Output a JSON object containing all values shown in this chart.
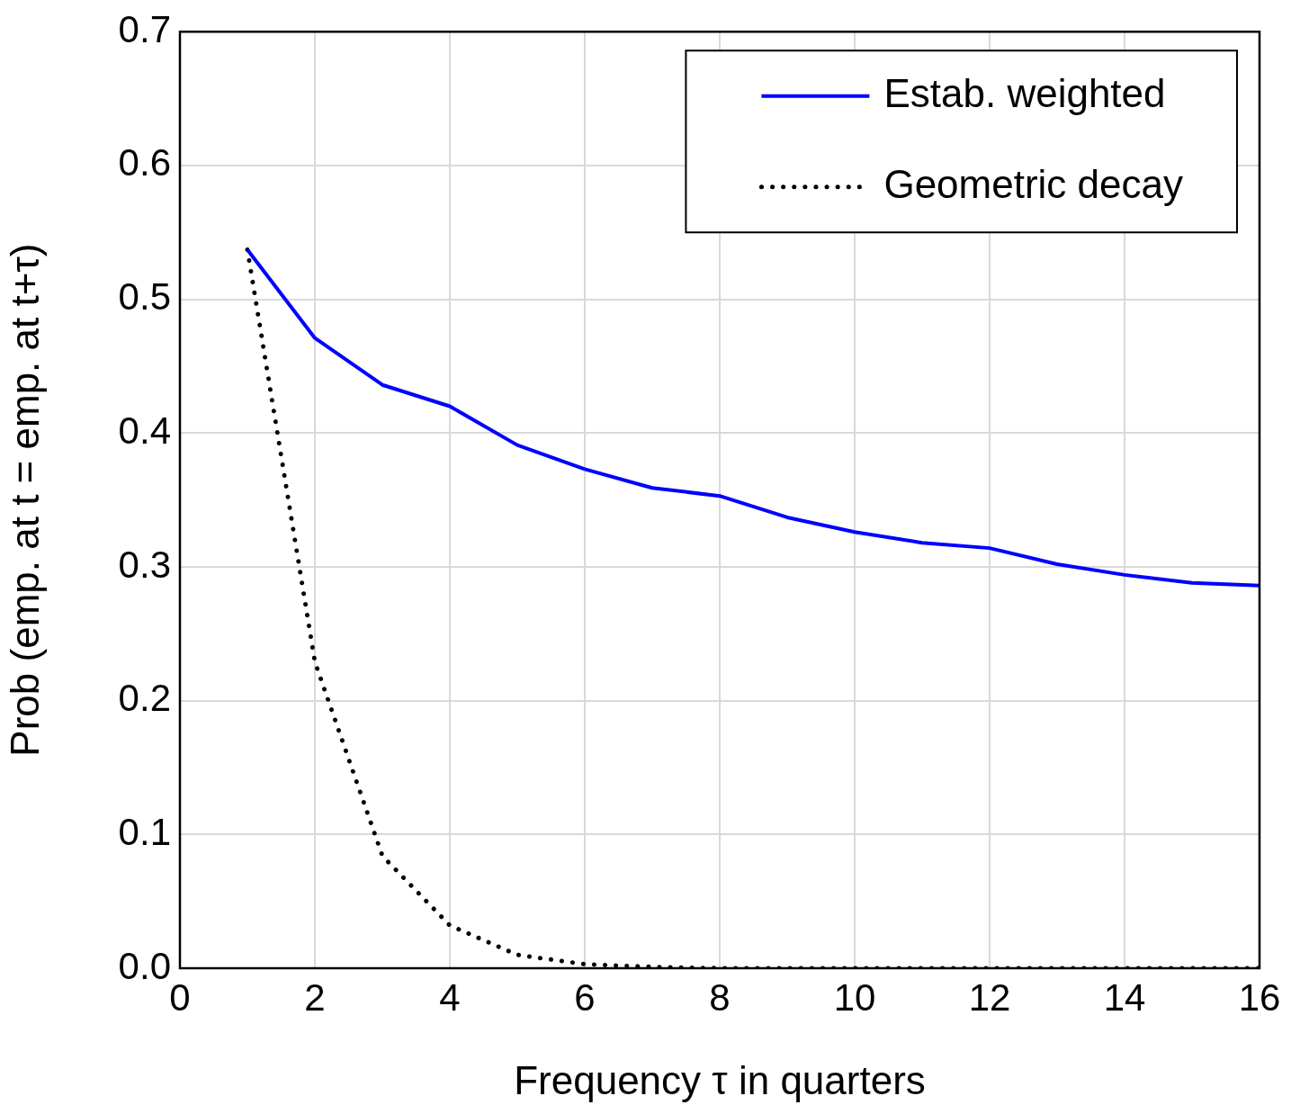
{
  "chart_data": {
    "type": "line",
    "xlabel": "Frequency τ in quarters",
    "ylabel": "Prob (emp. at t = emp. at t+τ)",
    "x": [
      1,
      2,
      3,
      4,
      5,
      6,
      7,
      8,
      9,
      10,
      11,
      12,
      13,
      14,
      15,
      16
    ],
    "series": [
      {
        "name": "Estab. weighted",
        "color": "#0000ff",
        "line_style": "solid",
        "values": [
          0.537,
          0.471,
          0.436,
          0.42,
          0.391,
          0.373,
          0.359,
          0.353,
          0.337,
          0.326,
          0.318,
          0.314,
          0.302,
          0.294,
          0.288,
          0.286
        ]
      },
      {
        "name": "Geometric decay",
        "color": "#000000",
        "line_style": "dotted",
        "values": [
          0.537,
          0.229,
          0.084,
          0.032,
          0.01,
          0.003,
          0.001,
          0,
          0,
          0,
          0,
          0,
          0,
          0,
          0,
          0
        ]
      }
    ],
    "xlim": [
      0,
      16
    ],
    "xticks": [
      0,
      2,
      4,
      6,
      8,
      10,
      12,
      14,
      16
    ],
    "ylim": [
      0,
      0.7
    ],
    "yticks": [
      {
        "value": 0,
        "label": "0.0"
      },
      0.1,
      0.2,
      0.3,
      0.4,
      0.5,
      0.6,
      0.7
    ],
    "grid": true,
    "legend": "top right",
    "marker": "none"
  }
}
